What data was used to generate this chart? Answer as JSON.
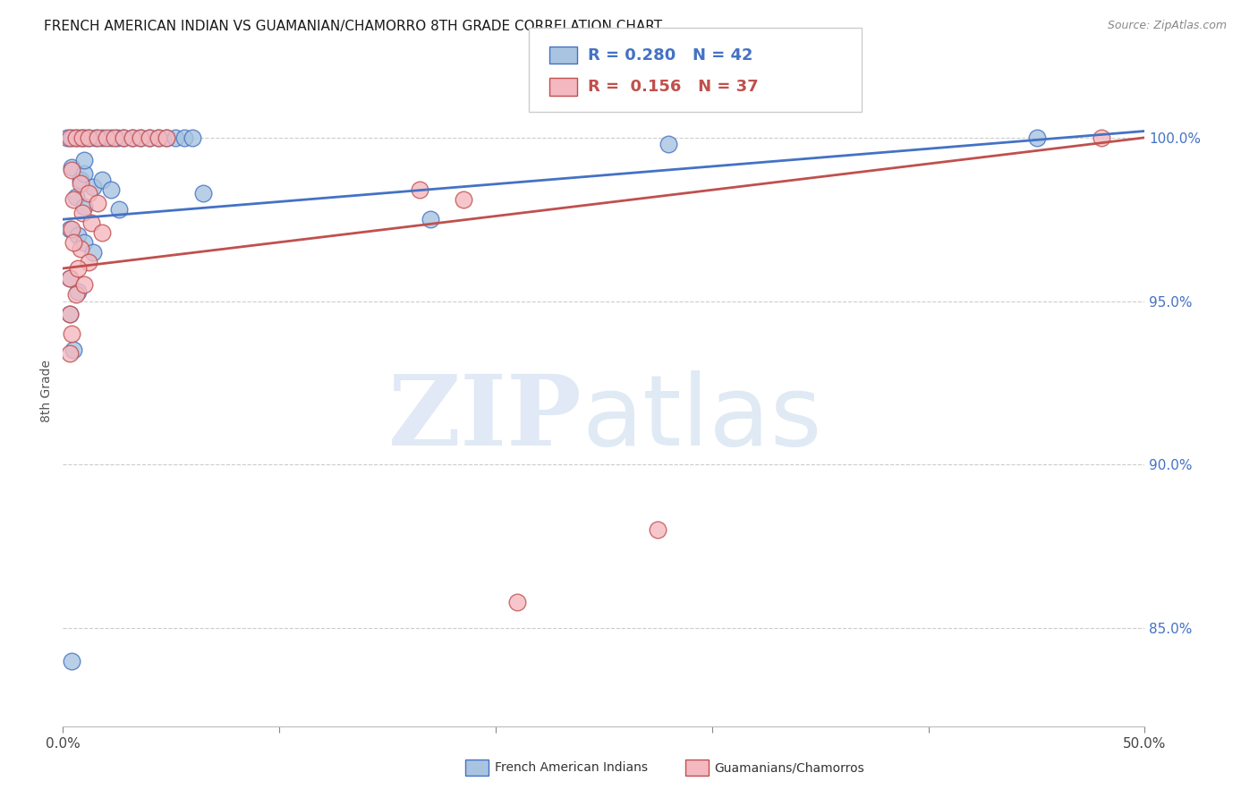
{
  "title": "FRENCH AMERICAN INDIAN VS GUAMANIAN/CHAMORRO 8TH GRADE CORRELATION CHART",
  "source": "Source: ZipAtlas.com",
  "ylabel": "8th Grade",
  "xlim": [
    0.0,
    0.5
  ],
  "ylim": [
    82.0,
    102.5
  ],
  "legend_blue_r": "0.280",
  "legend_blue_n": "42",
  "legend_pink_r": "0.156",
  "legend_pink_n": "37",
  "blue_fill": "#a8c4e0",
  "blue_edge": "#4472c4",
  "pink_fill": "#f4b8c0",
  "pink_edge": "#c0504d",
  "blue_line_color": "#4472c4",
  "pink_line_color": "#c0504d",
  "blue_scatter": [
    [
      0.002,
      100.0
    ],
    [
      0.004,
      100.0
    ],
    [
      0.006,
      100.0
    ],
    [
      0.008,
      100.0
    ],
    [
      0.01,
      100.0
    ],
    [
      0.012,
      100.0
    ],
    [
      0.015,
      100.0
    ],
    [
      0.018,
      100.0
    ],
    [
      0.022,
      100.0
    ],
    [
      0.025,
      100.0
    ],
    [
      0.028,
      100.0
    ],
    [
      0.032,
      100.0
    ],
    [
      0.036,
      100.0
    ],
    [
      0.04,
      100.0
    ],
    [
      0.044,
      100.0
    ],
    [
      0.048,
      100.0
    ],
    [
      0.052,
      100.0
    ],
    [
      0.056,
      100.0
    ],
    [
      0.06,
      100.0
    ],
    [
      0.004,
      99.1
    ],
    [
      0.008,
      98.7
    ],
    [
      0.01,
      98.9
    ],
    [
      0.014,
      98.5
    ],
    [
      0.018,
      98.7
    ],
    [
      0.022,
      98.4
    ],
    [
      0.006,
      98.2
    ],
    [
      0.01,
      97.9
    ],
    [
      0.003,
      97.2
    ],
    [
      0.007,
      97.0
    ],
    [
      0.01,
      96.8
    ],
    [
      0.014,
      96.5
    ],
    [
      0.003,
      95.7
    ],
    [
      0.007,
      95.3
    ],
    [
      0.003,
      94.6
    ],
    [
      0.026,
      97.8
    ],
    [
      0.065,
      98.3
    ],
    [
      0.17,
      97.5
    ],
    [
      0.28,
      99.8
    ],
    [
      0.45,
      100.0
    ],
    [
      0.005,
      93.5
    ],
    [
      0.004,
      84.0
    ],
    [
      0.01,
      99.3
    ]
  ],
  "pink_scatter": [
    [
      0.003,
      100.0
    ],
    [
      0.006,
      100.0
    ],
    [
      0.009,
      100.0
    ],
    [
      0.012,
      100.0
    ],
    [
      0.016,
      100.0
    ],
    [
      0.02,
      100.0
    ],
    [
      0.024,
      100.0
    ],
    [
      0.028,
      100.0
    ],
    [
      0.032,
      100.0
    ],
    [
      0.036,
      100.0
    ],
    [
      0.04,
      100.0
    ],
    [
      0.044,
      100.0
    ],
    [
      0.048,
      100.0
    ],
    [
      0.004,
      99.0
    ],
    [
      0.008,
      98.6
    ],
    [
      0.012,
      98.3
    ],
    [
      0.016,
      98.0
    ],
    [
      0.005,
      98.1
    ],
    [
      0.009,
      97.7
    ],
    [
      0.013,
      97.4
    ],
    [
      0.018,
      97.1
    ],
    [
      0.004,
      97.2
    ],
    [
      0.008,
      96.6
    ],
    [
      0.012,
      96.2
    ],
    [
      0.003,
      95.7
    ],
    [
      0.006,
      95.2
    ],
    [
      0.003,
      94.6
    ],
    [
      0.004,
      94.0
    ],
    [
      0.003,
      93.4
    ],
    [
      0.165,
      98.4
    ],
    [
      0.185,
      98.1
    ],
    [
      0.48,
      100.0
    ],
    [
      0.275,
      88.0
    ],
    [
      0.21,
      85.8
    ],
    [
      0.005,
      96.8
    ],
    [
      0.007,
      96.0
    ],
    [
      0.01,
      95.5
    ]
  ],
  "background_color": "#ffffff",
  "grid_color": "#cccccc",
  "grid_lines": [
    85.0,
    90.0,
    95.0,
    100.0
  ]
}
